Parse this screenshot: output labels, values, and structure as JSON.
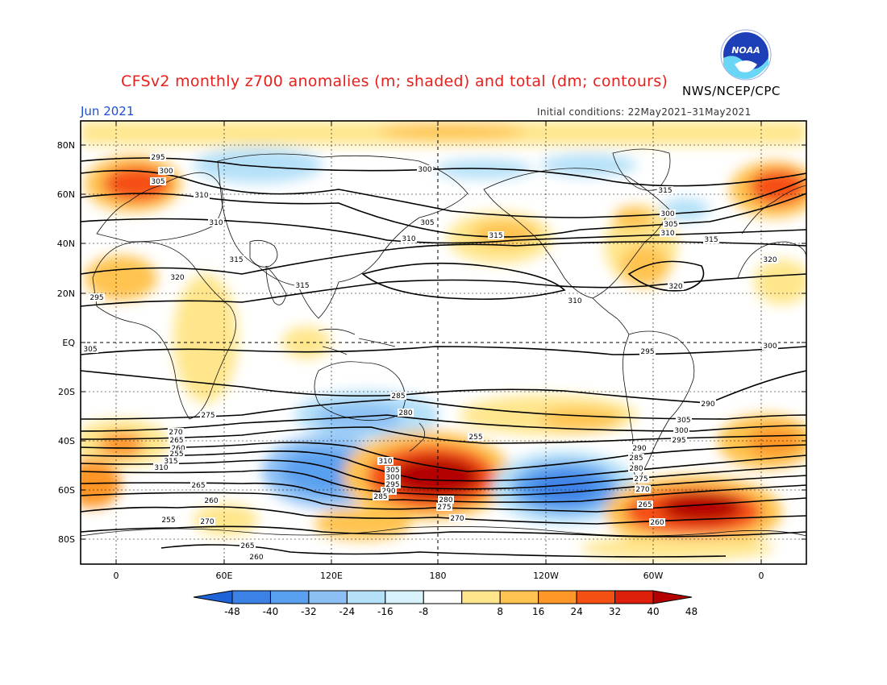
{
  "header": {
    "title": "CFSv2 monthly z700 anomalies (m; shaded) and total (dm; contours)",
    "agency": "NWS/NCEP/CPC",
    "month": "Jun 2021",
    "initial_conditions": "Initial conditions: 22May2021–31May2021",
    "logo_text": "NOAA"
  },
  "map": {
    "lat_labels": [
      "80N",
      "60N",
      "40N",
      "20N",
      "EQ",
      "20S",
      "40S",
      "60S",
      "80S"
    ],
    "lon_labels": [
      "0",
      "60E",
      "120E",
      "180",
      "120W",
      "60W",
      "0"
    ],
    "contour_labels": [
      "295",
      "300",
      "305",
      "310",
      "310",
      "315",
      "320",
      "295",
      "300",
      "305",
      "310",
      "315",
      "320",
      "300",
      "305",
      "310",
      "315",
      "320",
      "315",
      "315",
      "310",
      "305",
      "300",
      "295",
      "290",
      "285",
      "280",
      "275",
      "270",
      "265",
      "260",
      "255",
      "315",
      "310",
      "305",
      "300",
      "295",
      "290",
      "285",
      "280",
      "275",
      "270",
      "265",
      "260",
      "255",
      "310",
      "305",
      "300",
      "295",
      "290",
      "285",
      "280",
      "275",
      "270",
      "265",
      "260",
      "255",
      "270",
      "265",
      "260"
    ]
  },
  "colorbar": {
    "tick_labels": [
      "-48",
      "-40",
      "-32",
      "-24",
      "-16",
      "-8",
      "8",
      "16",
      "24",
      "32",
      "40",
      "48"
    ],
    "colors": [
      "#1e64d8",
      "#3c82e6",
      "#5aa0f0",
      "#8cc0f5",
      "#b4e0f8",
      "#d7f2fb",
      "#ffffff",
      "#ffe68c",
      "#ffc350",
      "#ff9628",
      "#f55014",
      "#dc1e0a",
      "#b40000"
    ]
  }
}
